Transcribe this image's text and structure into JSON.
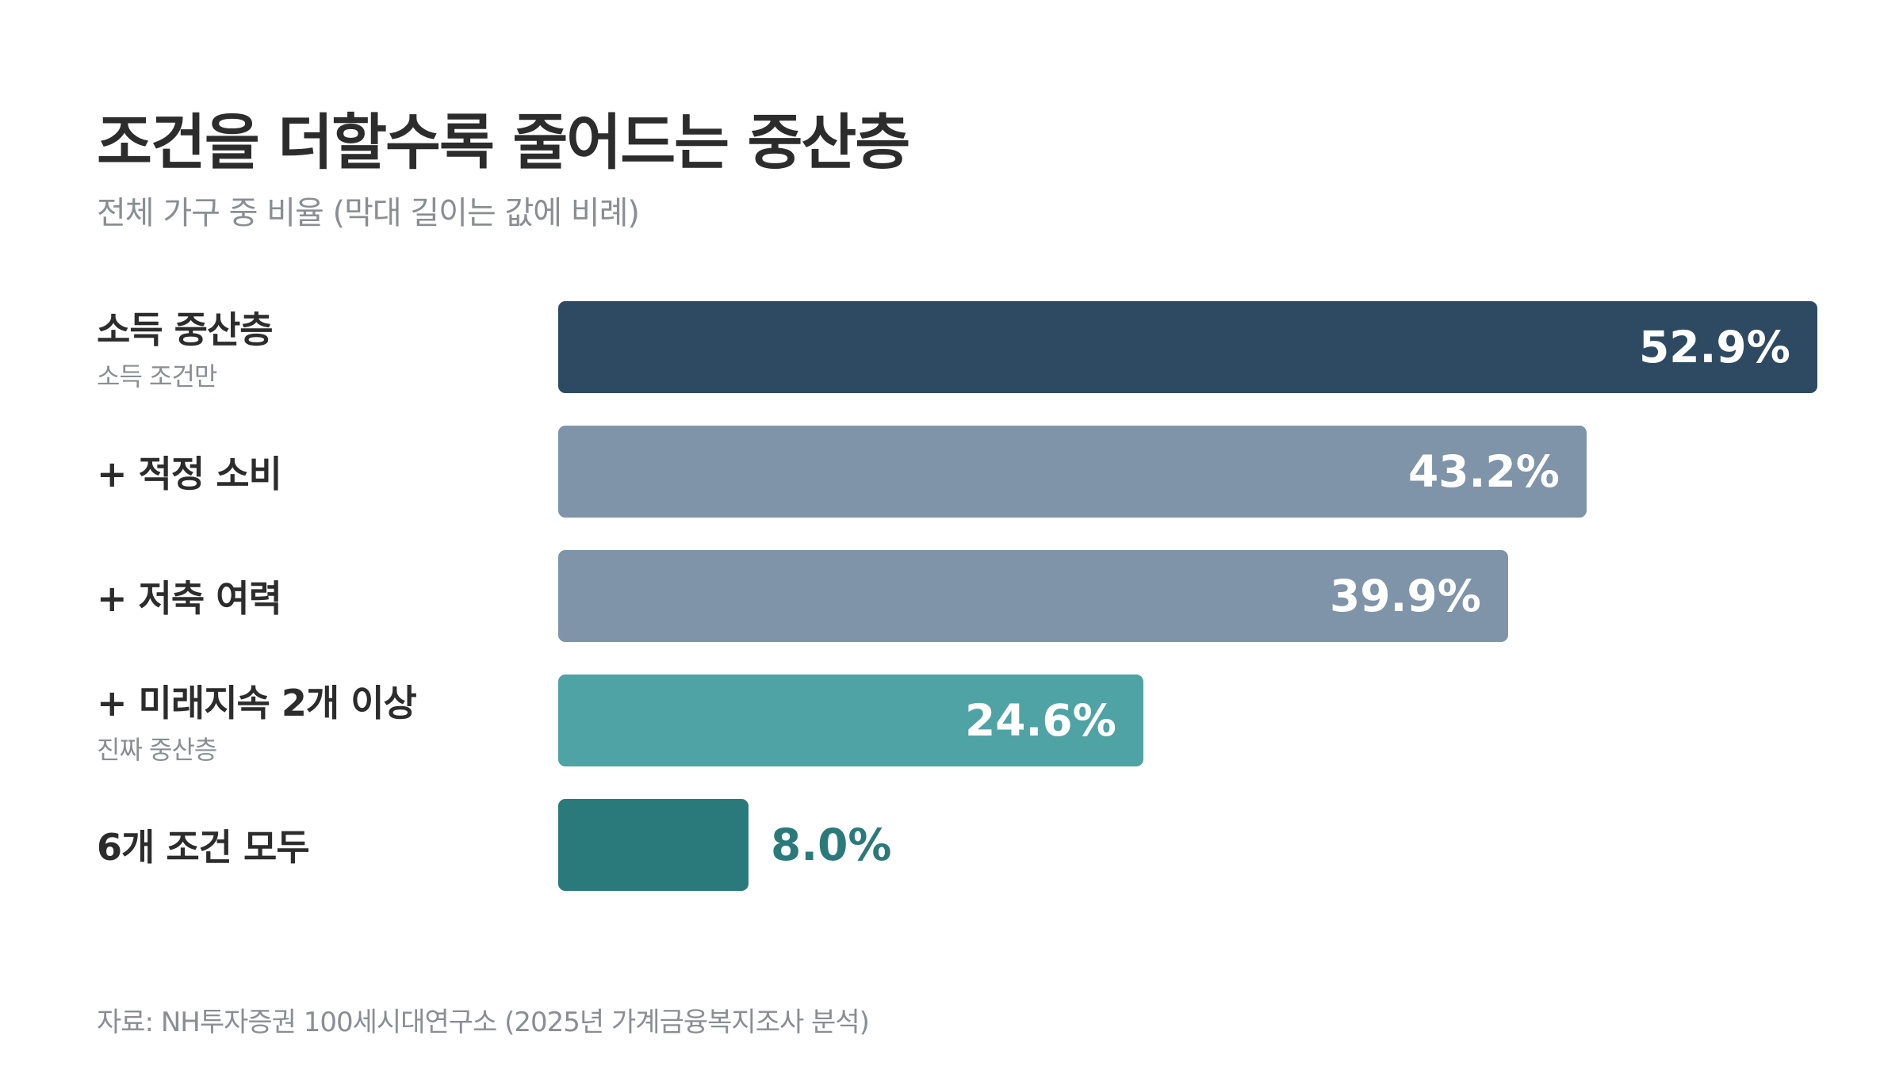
{
  "header": {
    "title": "조건을 더할수록 줄어드는 중산층",
    "subtitle": "전체 가구 중 비율 (막대 길이는 값에 비례)"
  },
  "chart_data": {
    "type": "bar",
    "orientation": "horizontal",
    "unit": "%",
    "xlim": [
      0,
      52.9
    ],
    "grid": false,
    "categories": [
      {
        "label": "소득 중산층",
        "sublabel": "소득 조건만",
        "value": 52.9,
        "display": "52.9%",
        "color": "#2e4a62",
        "label_position": "inside"
      },
      {
        "label": "+ 적정 소비",
        "sublabel": "",
        "value": 43.2,
        "display": "43.2%",
        "color": "#7f94a8",
        "label_position": "inside"
      },
      {
        "label": "+ 저축 여력",
        "sublabel": "",
        "value": 39.9,
        "display": "39.9%",
        "color": "#7f94a8",
        "label_position": "inside"
      },
      {
        "label": "+ 미래지속 2개 이상",
        "sublabel": "진짜 중산층",
        "value": 24.6,
        "display": "24.6%",
        "color": "#4fa3a5",
        "label_position": "inside"
      },
      {
        "label": "6개 조건 모두",
        "sublabel": "",
        "value": 8.0,
        "display": "8.0%",
        "color": "#2b7a7b",
        "label_position": "outside"
      }
    ]
  },
  "footer": {
    "source": "자료: NH투자증권 100세시대연구소 (2025년 가계금융복지조사 분석)"
  }
}
